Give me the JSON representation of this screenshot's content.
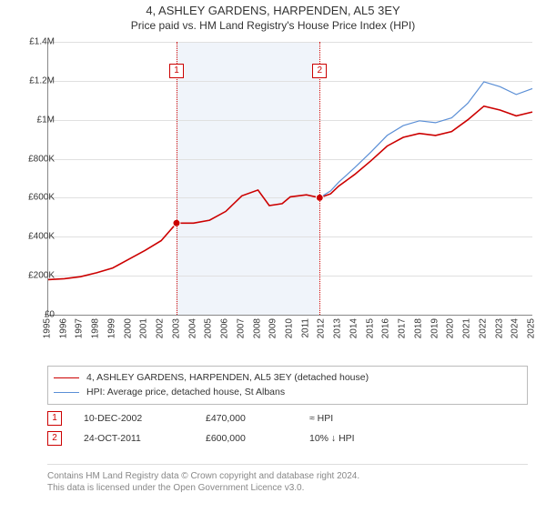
{
  "title": "4, ASHLEY GARDENS, HARPENDEN, AL5 3EY",
  "subtitle": "Price paid vs. HM Land Registry's House Price Index (HPI)",
  "chart": {
    "type": "line",
    "background_color": "#ffffff",
    "grid_color": "#e0e0e0",
    "axis_color": "#888888",
    "shade_color": "#f0f4fa",
    "label_fontsize": 10,
    "x": {
      "min": 1995,
      "max": 2025,
      "ticks": [
        1995,
        1996,
        1997,
        1998,
        1999,
        2000,
        2001,
        2002,
        2003,
        2004,
        2005,
        2006,
        2007,
        2008,
        2009,
        2010,
        2011,
        2012,
        2013,
        2014,
        2015,
        2016,
        2017,
        2018,
        2019,
        2020,
        2021,
        2022,
        2023,
        2024,
        2025
      ]
    },
    "y": {
      "min": 0,
      "max": 1400000,
      "tick_step": 200000,
      "tick_labels": [
        "£0",
        "£200K",
        "£400K",
        "£600K",
        "£800K",
        "£1M",
        "£1.2M",
        "£1.4M"
      ]
    },
    "shade_range": [
      2002.95,
      2011.82
    ],
    "series": [
      {
        "key": "property",
        "label": "4, ASHLEY GARDENS, HARPENDEN, AL5 3EY (detached house)",
        "color": "#cc0000",
        "line_width": 1.6,
        "data": [
          [
            1995,
            180000
          ],
          [
            1996,
            185000
          ],
          [
            1997,
            195000
          ],
          [
            1998,
            215000
          ],
          [
            1999,
            240000
          ],
          [
            2000,
            285000
          ],
          [
            2001,
            330000
          ],
          [
            2002,
            380000
          ],
          [
            2002.95,
            470000
          ],
          [
            2004,
            470000
          ],
          [
            2005,
            485000
          ],
          [
            2006,
            530000
          ],
          [
            2007,
            610000
          ],
          [
            2008,
            640000
          ],
          [
            2008.7,
            560000
          ],
          [
            2009.5,
            570000
          ],
          [
            2010,
            605000
          ],
          [
            2011,
            615000
          ],
          [
            2011.82,
            600000
          ],
          [
            2012.5,
            620000
          ],
          [
            2013,
            660000
          ],
          [
            2014,
            720000
          ],
          [
            2015,
            790000
          ],
          [
            2016,
            865000
          ],
          [
            2017,
            910000
          ],
          [
            2018,
            930000
          ],
          [
            2019,
            920000
          ],
          [
            2020,
            940000
          ],
          [
            2021,
            1000000
          ],
          [
            2022,
            1070000
          ],
          [
            2023,
            1050000
          ],
          [
            2024,
            1020000
          ],
          [
            2025,
            1040000
          ]
        ]
      },
      {
        "key": "hpi",
        "label": "HPI: Average price, detached house, St Albans",
        "color": "#5b8fd6",
        "line_width": 1.2,
        "data": [
          [
            2011.82,
            600000
          ],
          [
            2012.5,
            635000
          ],
          [
            2013,
            680000
          ],
          [
            2014,
            755000
          ],
          [
            2015,
            835000
          ],
          [
            2016,
            920000
          ],
          [
            2017,
            970000
          ],
          [
            2018,
            995000
          ],
          [
            2019,
            985000
          ],
          [
            2020,
            1010000
          ],
          [
            2021,
            1085000
          ],
          [
            2022,
            1195000
          ],
          [
            2023,
            1170000
          ],
          [
            2024,
            1130000
          ],
          [
            2025,
            1160000
          ]
        ]
      }
    ],
    "markers": [
      {
        "x": 2002.95,
        "y": 470000,
        "label": "1",
        "color": "#cc0000",
        "r": 4
      },
      {
        "x": 2011.82,
        "y": 600000,
        "label": "2",
        "color": "#cc0000",
        "r": 4
      }
    ]
  },
  "sales": [
    {
      "badge": "1",
      "date": "10-DEC-2002",
      "price": "£470,000",
      "delta": "≈ HPI"
    },
    {
      "badge": "2",
      "date": "24-OCT-2011",
      "price": "£600,000",
      "delta": "10% ↓ HPI"
    }
  ],
  "footer": {
    "line1": "Contains HM Land Registry data © Crown copyright and database right 2024.",
    "line2": "This data is licensed under the Open Government Licence v3.0."
  }
}
